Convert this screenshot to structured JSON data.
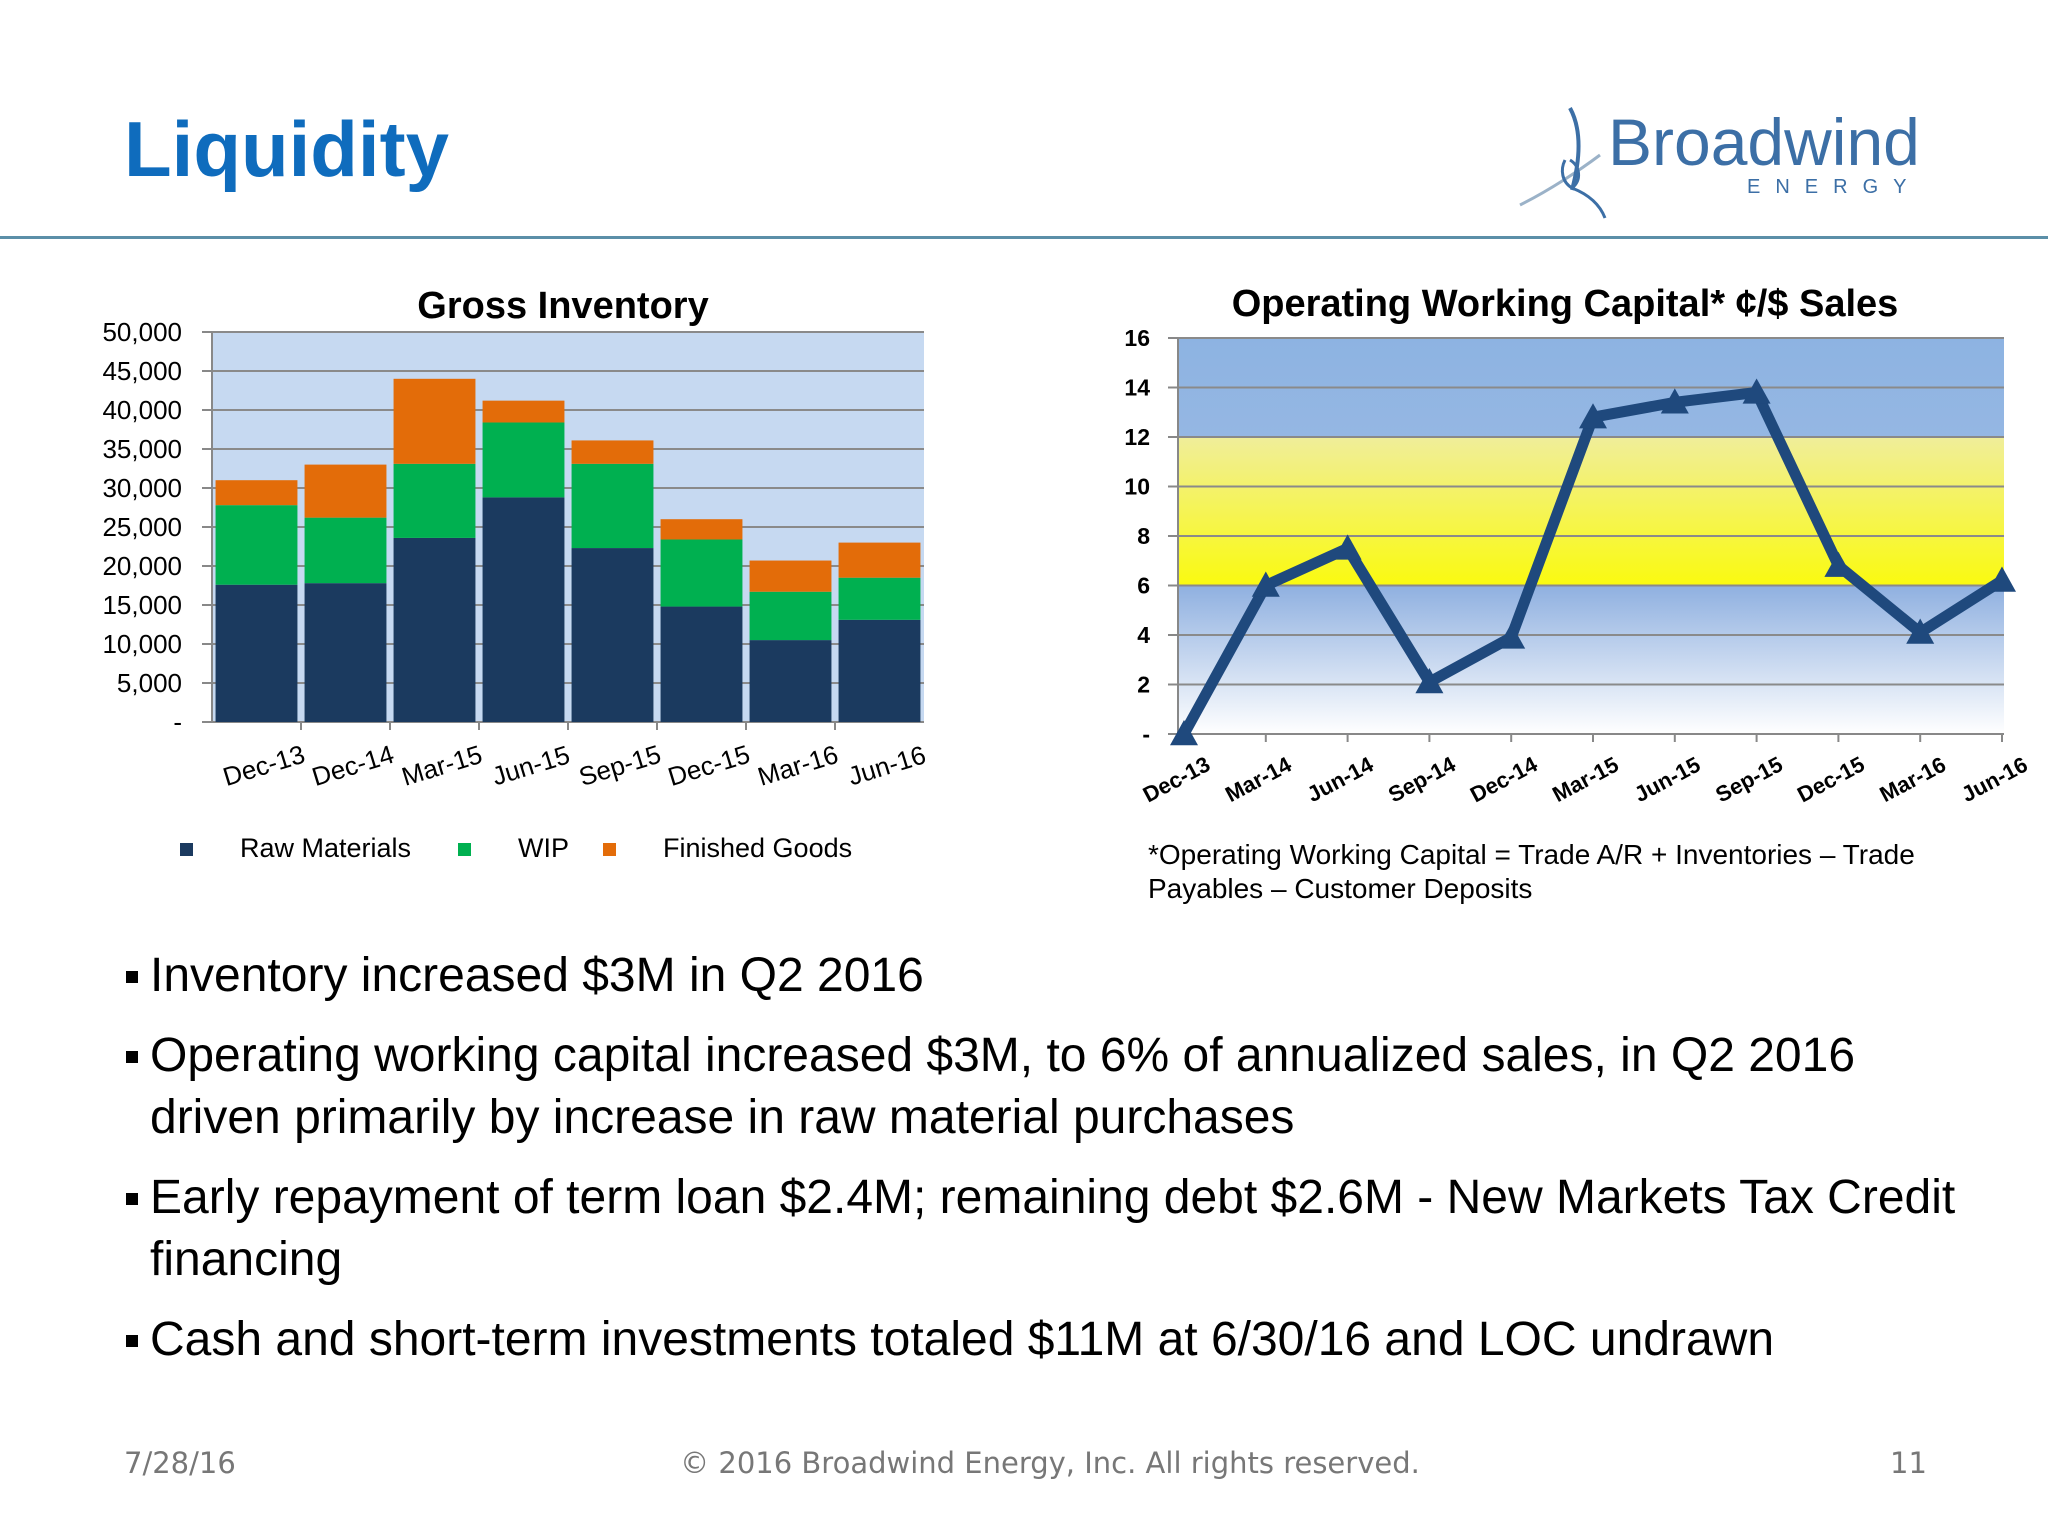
{
  "header": {
    "title": "Liquidity"
  },
  "logo": {
    "name": "Broadwind",
    "sub": "ENERGY"
  },
  "chart_data": [
    {
      "type": "bar",
      "stacked": true,
      "title": "Gross Inventory",
      "categories": [
        "Dec-13",
        "Dec-14",
        "Mar-15",
        "Jun-15",
        "Sep-15",
        "Dec-15",
        "Mar-16",
        "Jun-16"
      ],
      "series": [
        {
          "name": "Raw Materials",
          "color": "#1b3a5f",
          "values": [
            17600,
            17800,
            23600,
            28800,
            22300,
            14800,
            10500,
            13100
          ]
        },
        {
          "name": "WIP",
          "color": "#00b050",
          "values": [
            10200,
            8400,
            9500,
            9600,
            10800,
            8600,
            6200,
            5400
          ]
        },
        {
          "name": "Finished Goods",
          "color": "#e36c09",
          "values": [
            3200,
            6800,
            10900,
            2800,
            3000,
            2600,
            4000,
            4500
          ]
        }
      ],
      "ylim": [
        0,
        50000
      ],
      "yticks": [
        "-",
        "5,000",
        "10,000",
        "15,000",
        "20,000",
        "25,000",
        "30,000",
        "35,000",
        "40,000",
        "45,000",
        "50,000"
      ],
      "legend_position": "bottom"
    },
    {
      "type": "line",
      "title": "Operating Working Capital* ¢/$ Sales",
      "categories": [
        "Dec-13",
        "Mar-14",
        "Jun-14",
        "Sep-14",
        "Dec-14",
        "Mar-15",
        "Jun-15",
        "Sep-15",
        "Dec-15",
        "Mar-16",
        "Jun-16"
      ],
      "values": [
        0,
        6.0,
        7.5,
        2.1,
        3.9,
        12.8,
        13.4,
        13.8,
        6.8,
        4.1,
        6.2
      ],
      "ylim": [
        0,
        16
      ],
      "yticks": [
        "-",
        "2",
        "4",
        "6",
        "8",
        "10",
        "12",
        "14",
        "16"
      ],
      "target_band": [
        6,
        12
      ],
      "line_color": "#1f497d",
      "footnote": "*Operating Working Capital = Trade A/R + Inventories – Trade Payables – Customer Deposits"
    }
  ],
  "bullets": [
    "Inventory increased $3M in Q2 2016",
    "Operating working capital increased $3M, to 6% of annualized sales, in Q2 2016 driven primarily by increase in raw material purchases",
    "Early repayment of term loan $2.4M; remaining debt $2.6M - New Markets Tax Credit financing",
    "Cash and short-term investments totaled $11M at 6/30/16 and LOC undrawn"
  ],
  "footer": {
    "date": "7/28/16",
    "copyright": "© 2016 Broadwind Energy, Inc. All rights reserved.",
    "page": "11"
  }
}
